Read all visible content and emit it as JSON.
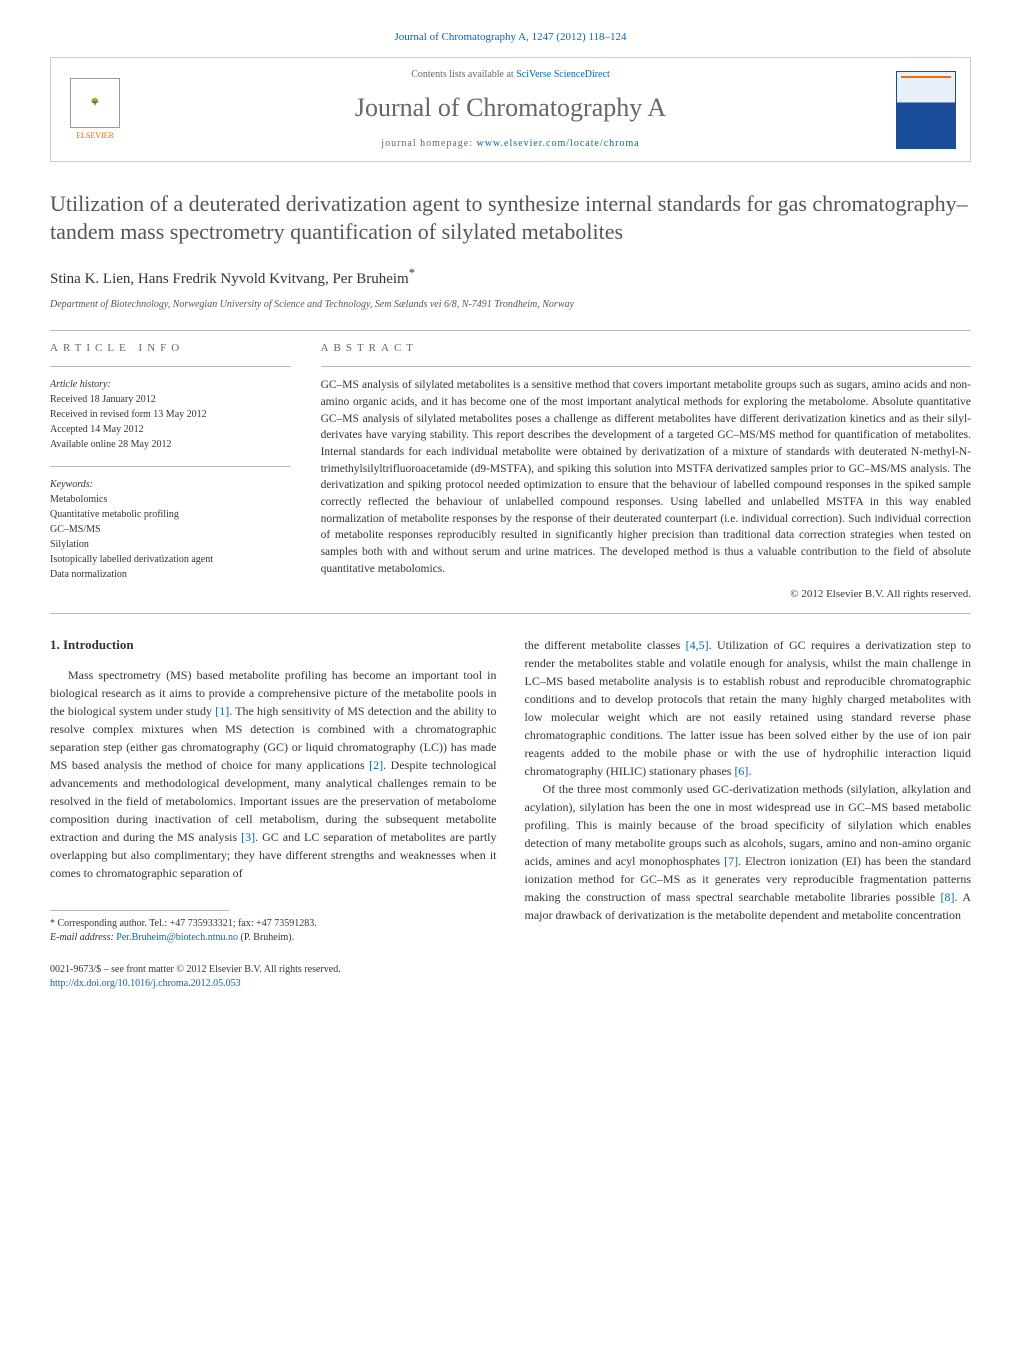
{
  "journal_ref": "Journal of Chromatography A, 1247 (2012) 118–124",
  "header": {
    "contents_prefix": "Contents lists available at ",
    "contents_link": "SciVerse ScienceDirect",
    "journal_name": "Journal of Chromatography A",
    "homepage_prefix": "journal homepage: ",
    "homepage_url": "www.elsevier.com/locate/chroma",
    "publisher_label": "ELSEVIER"
  },
  "title": "Utilization of a deuterated derivatization agent to synthesize internal standards for gas chromatography–tandem mass spectrometry quantification of silylated metabolites",
  "authors": "Stina K. Lien, Hans Fredrik Nyvold Kvitvang, Per Bruheim",
  "corresponding_marker": "*",
  "affiliation": "Department of Biotechnology, Norwegian University of Science and Technology, Sem Sælands vei 6/8, N-7491 Trondheim, Norway",
  "article_info": {
    "label": "article info",
    "history_heading": "Article history:",
    "history": [
      "Received 18 January 2012",
      "Received in revised form 13 May 2012",
      "Accepted 14 May 2012",
      "Available online 28 May 2012"
    ],
    "keywords_heading": "Keywords:",
    "keywords": [
      "Metabolomics",
      "Quantitative metabolic profiling",
      "GC–MS/MS",
      "Silylation",
      "Isotopically labelled derivatization agent",
      "Data normalization"
    ]
  },
  "abstract": {
    "label": "abstract",
    "text": "GC–MS analysis of silylated metabolites is a sensitive method that covers important metabolite groups such as sugars, amino acids and non-amino organic acids, and it has become one of the most important analytical methods for exploring the metabolome. Absolute quantitative GC–MS analysis of silylated metabolites poses a challenge as different metabolites have different derivatization kinetics and as their silyl-derivates have varying stability. This report describes the development of a targeted GC–MS/MS method for quantification of metabolites. Internal standards for each individual metabolite were obtained by derivatization of a mixture of standards with deuterated N-methyl-N-trimethylsilyltrifluoroacetamide (d9-MSTFA), and spiking this solution into MSTFA derivatized samples prior to GC–MS/MS analysis. The derivatization and spiking protocol needed optimization to ensure that the behaviour of labelled compound responses in the spiked sample correctly reflected the behaviour of unlabelled compound responses. Using labelled and unlabelled MSTFA in this way enabled normalization of metabolite responses by the response of their deuterated counterpart (i.e. individual correction). Such individual correction of metabolite responses reproducibly resulted in significantly higher precision than traditional data correction strategies when tested on samples both with and without serum and urine matrices. The developed method is thus a valuable contribution to the field of absolute quantitative metabolomics.",
    "copyright": "© 2012 Elsevier B.V. All rights reserved."
  },
  "body": {
    "heading": "1. Introduction",
    "col1_p1": "Mass spectrometry (MS) based metabolite profiling has become an important tool in biological research as it aims to provide a comprehensive picture of the metabolite pools in the biological system under study [1]. The high sensitivity of MS detection and the ability to resolve complex mixtures when MS detection is combined with a chromatographic separation step (either gas chromatography (GC) or liquid chromatography (LC)) has made MS based analysis the method of choice for many applications [2]. Despite technological advancements and methodological development, many analytical challenges remain to be resolved in the field of metabolomics. Important issues are the preservation of metabolome composition during inactivation of cell metabolism, during the subsequent metabolite extraction and during the MS analysis [3]. GC and LC separation of metabolites are partly overlapping but also complimentary; they have different strengths and weaknesses when it comes to chromatographic separation of",
    "col2_p1": "the different metabolite classes [4,5]. Utilization of GC requires a derivatization step to render the metabolites stable and volatile enough for analysis, whilst the main challenge in LC–MS based metabolite analysis is to establish robust and reproducible chromatographic conditions and to develop protocols that retain the many highly charged metabolites with low molecular weight which are not easily retained using standard reverse phase chromatographic conditions. The latter issue has been solved either by the use of ion pair reagents added to the mobile phase or with the use of hydrophilic interaction liquid chromatography (HILIC) stationary phases [6].",
    "col2_p2": "Of the three most commonly used GC-derivatization methods (silylation, alkylation and acylation), silylation has been the one in most widespread use in GC–MS based metabolic profiling. This is mainly because of the broad specificity of silylation which enables detection of many metabolite groups such as alcohols, sugars, amino and non-amino organic acids, amines and acyl monophosphates [7]. Electron ionization (EI) has been the standard ionization method for GC–MS as it generates very reproducible fragmentation patterns making the construction of mass spectral searchable metabolite libraries possible [8]. A major drawback of derivatization is the metabolite dependent and metabolite concentration",
    "cites": {
      "c1": "[1]",
      "c2": "[2]",
      "c3": "[3]",
      "c45": "[4,5]",
      "c6": "[6]",
      "c7": "[7]",
      "c8": "[8]"
    }
  },
  "footnote": {
    "marker": "*",
    "text_prefix": " Corresponding author. Tel.: +47 735933321; fax: +47 73591283.",
    "email_label": "E-mail address: ",
    "email": "Per.Bruheim@biotech.ntnu.no",
    "email_suffix": " (P. Bruheim)."
  },
  "footer": {
    "issn_line": "0021-9673/$ – see front matter © 2012 Elsevier B.V. All rights reserved.",
    "doi": "http://dx.doi.org/10.1016/j.chroma.2012.05.053"
  },
  "colors": {
    "link": "#0066cc",
    "rule": "#bbbbbb",
    "text": "#333333",
    "muted": "#666666",
    "elsevier_orange": "#ff6600"
  },
  "typography": {
    "title_fontsize": 22,
    "journal_name_fontsize": 26,
    "body_fontsize": 12,
    "abstract_fontsize": 11.5,
    "info_fontsize": 10
  }
}
